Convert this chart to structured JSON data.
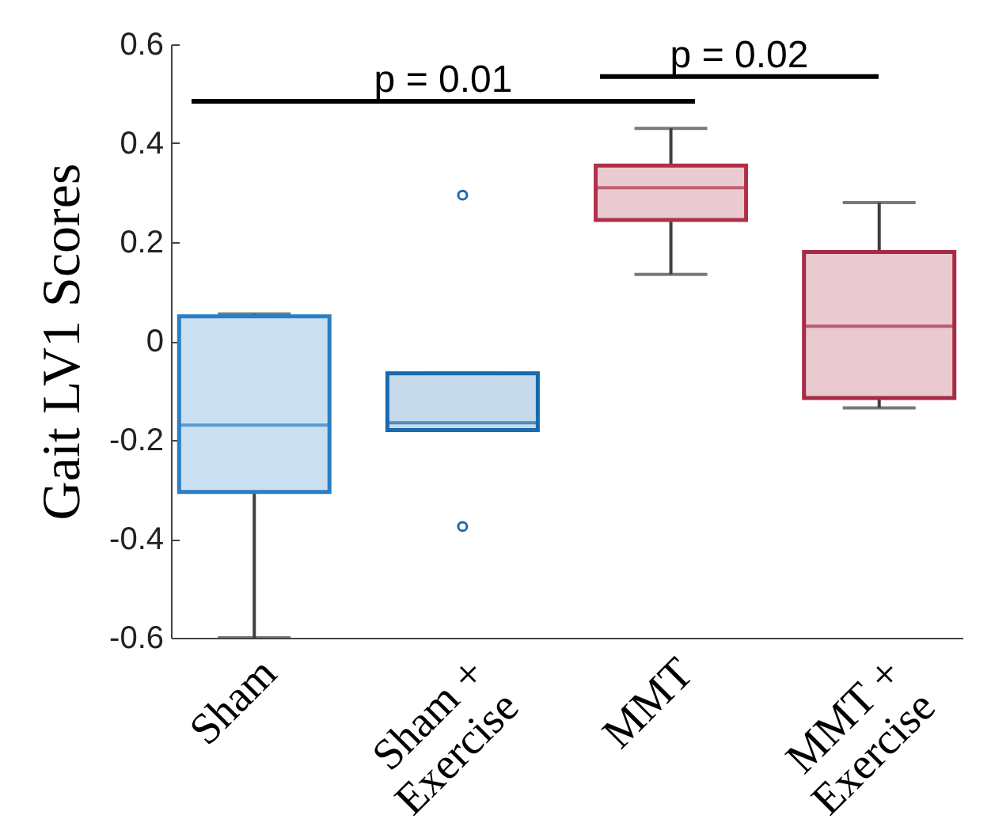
{
  "chart_data": {
    "type": "box",
    "ylabel": "Gait LV1 Scores",
    "categories": [
      "Sham",
      "Sham +\nExercise",
      "MMT",
      "MMT +\nExercise"
    ],
    "boxes": [
      {
        "low": -0.6,
        "q1": -0.305,
        "median": -0.17,
        "q3": 0.05,
        "high": 0.055
      },
      {
        "low": -0.18,
        "q1": -0.18,
        "median": -0.165,
        "q3": -0.065,
        "high": -0.065,
        "outliers": [
          0.295,
          -0.375
        ]
      },
      {
        "low": 0.135,
        "q1": 0.245,
        "median": 0.31,
        "q3": 0.355,
        "high": 0.43
      },
      {
        "low": -0.135,
        "q1": -0.115,
        "median": 0.03,
        "q3": 0.18,
        "high": 0.28
      }
    ],
    "colors": [
      "#2a7fc4",
      "#1a6aae",
      "#b0304a",
      "#a82a44"
    ],
    "ylim": [
      -0.6,
      0.6
    ],
    "yticks": [
      -0.6,
      -0.4,
      -0.2,
      0,
      0.2,
      0.4,
      0.6
    ],
    "annotations": [
      "p = 0.01",
      "p = 0.02"
    ],
    "grid": false
  }
}
